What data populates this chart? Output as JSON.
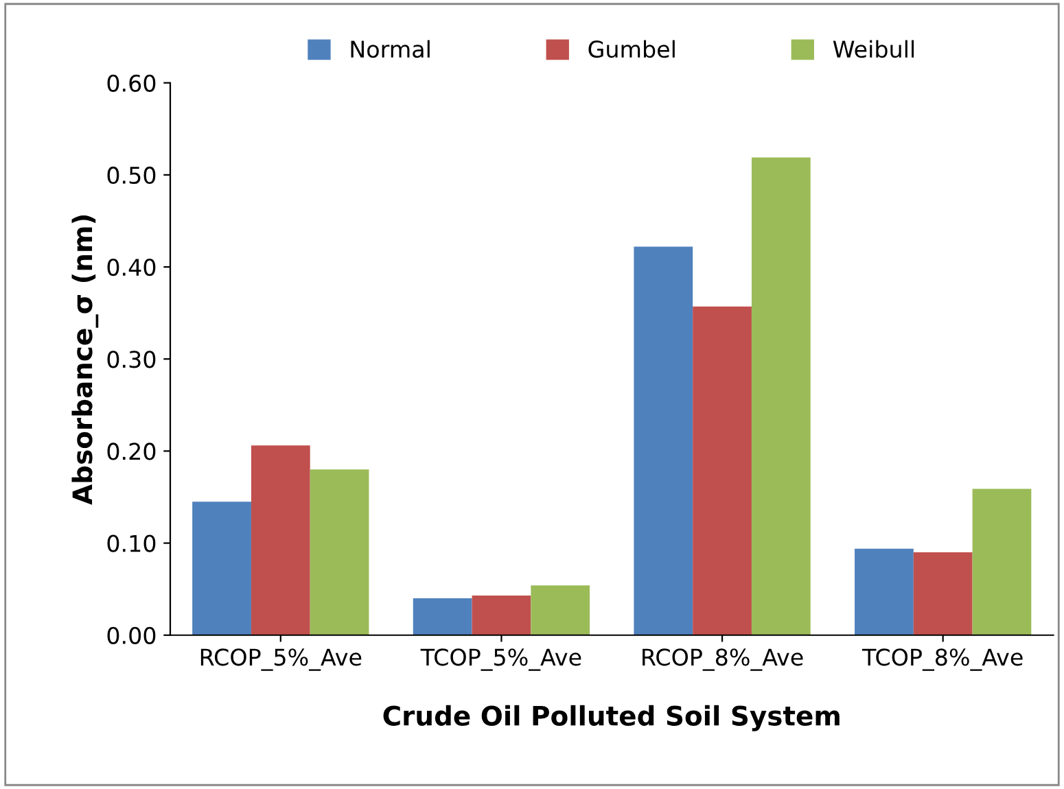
{
  "chart_data": {
    "type": "bar",
    "xlabel": "Crude Oil Polluted Soil System",
    "ylabel": "Absorbance_σ (nm)",
    "categories": [
      "RCOP_5%_Ave",
      "TCOP_5%_Ave",
      "RCOP_8%_Ave",
      "TCOP_8%_Ave"
    ],
    "series": [
      {
        "name": "Normal",
        "color": "#4f81bd",
        "values": [
          0.145,
          0.04,
          0.422,
          0.094
        ]
      },
      {
        "name": "Gumbel",
        "color": "#c0504d",
        "values": [
          0.206,
          0.043,
          0.357,
          0.09
        ]
      },
      {
        "name": "Weibull",
        "color": "#9bbb59",
        "values": [
          0.18,
          0.054,
          0.519,
          0.159
        ]
      }
    ],
    "ylim": [
      0,
      0.6
    ],
    "yticks": [
      {
        "value": 0,
        "label": "0.00"
      },
      {
        "value": 0.1,
        "label": "0.10"
      },
      {
        "value": 0.2,
        "label": "0.20"
      },
      {
        "value": 0.3,
        "label": "0.30"
      },
      {
        "value": 0.4,
        "label": "0.40"
      },
      {
        "value": 0.5,
        "label": "0.50"
      },
      {
        "value": 0.6,
        "label": "0.60"
      }
    ],
    "grid": false,
    "legend": "top"
  }
}
